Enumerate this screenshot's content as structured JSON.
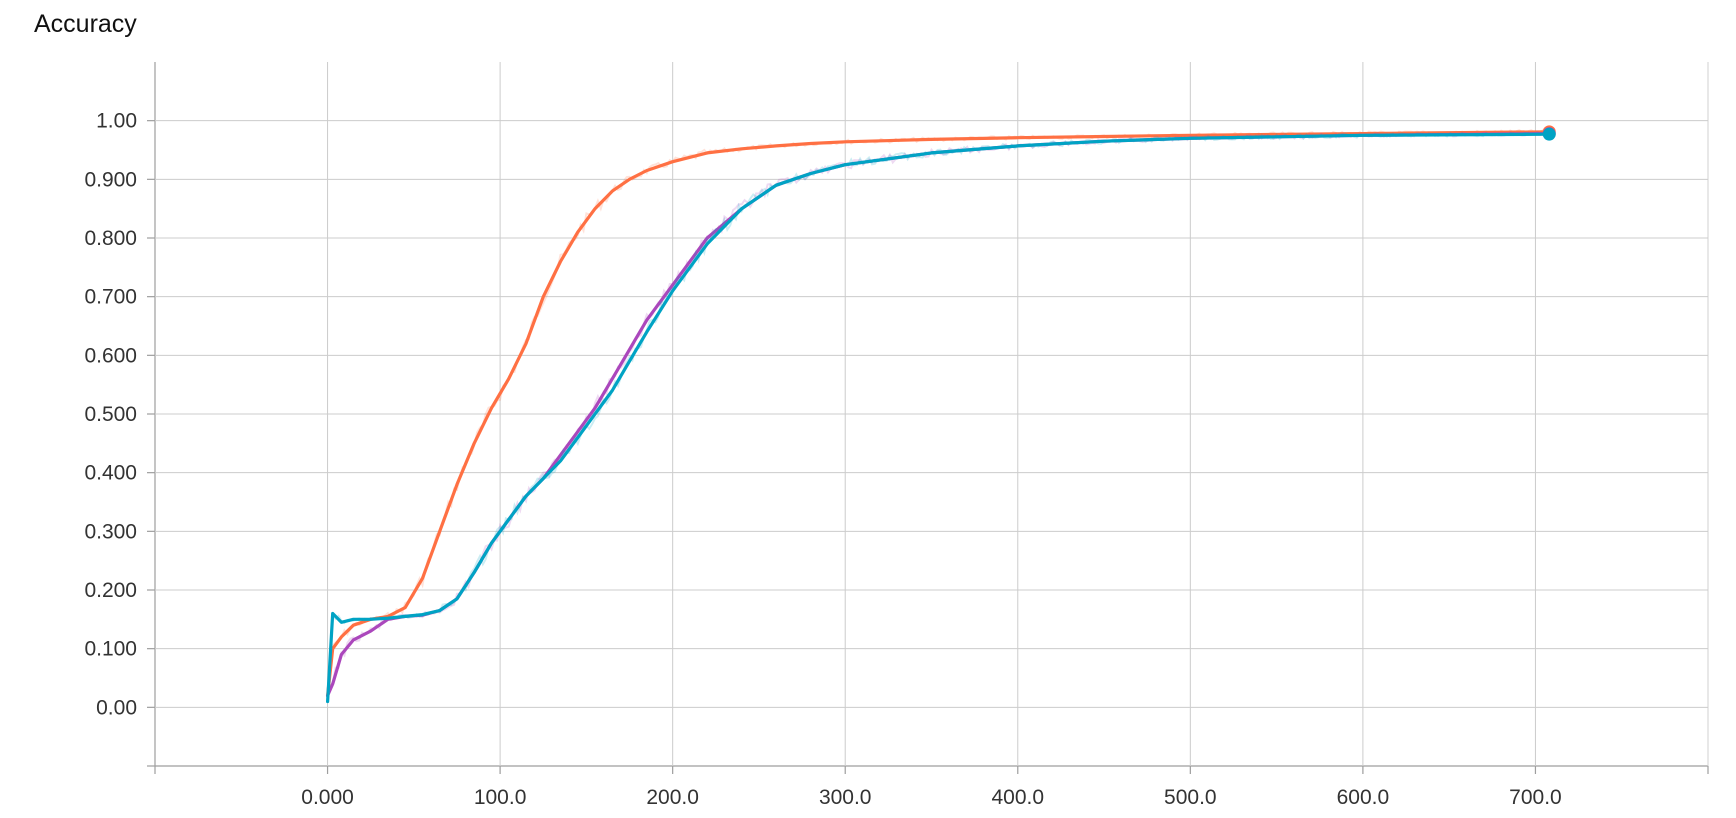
{
  "chart_data": {
    "type": "line",
    "title": "Accuracy",
    "xlabel": "",
    "ylabel": "",
    "xlim": [
      -100,
      800
    ],
    "ylim": [
      -0.1,
      1.1
    ],
    "x_ticks": [
      0,
      100,
      200,
      300,
      400,
      500,
      600,
      700
    ],
    "x_tick_labels": [
      "0.000",
      "100.0",
      "200.0",
      "300.0",
      "400.0",
      "500.0",
      "600.0",
      "700.0"
    ],
    "y_ticks": [
      0,
      0.1,
      0.2,
      0.3,
      0.4,
      0.5,
      0.6,
      0.7,
      0.8,
      0.9,
      1.0
    ],
    "y_tick_labels": [
      "0.00",
      "0.100",
      "0.200",
      "0.300",
      "0.400",
      "0.500",
      "0.600",
      "0.700",
      "0.800",
      "0.900",
      "1.00"
    ],
    "grid": true,
    "series": [
      {
        "color": "#ff7043",
        "x": [
          0,
          3,
          8,
          15,
          25,
          35,
          45,
          55,
          65,
          75,
          85,
          95,
          105,
          115,
          125,
          135,
          145,
          155,
          165,
          175,
          185,
          200,
          220,
          240,
          260,
          280,
          300,
          350,
          400,
          450,
          500,
          600,
          708
        ],
        "y": [
          0.02,
          0.1,
          0.12,
          0.14,
          0.15,
          0.155,
          0.17,
          0.22,
          0.3,
          0.38,
          0.45,
          0.51,
          0.56,
          0.62,
          0.7,
          0.76,
          0.81,
          0.85,
          0.88,
          0.9,
          0.915,
          0.93,
          0.945,
          0.952,
          0.957,
          0.961,
          0.964,
          0.968,
          0.971,
          0.973,
          0.975,
          0.978,
          0.981
        ]
      },
      {
        "color": "#ab47bc",
        "x": [
          0,
          3,
          8,
          15,
          25,
          35,
          45,
          55,
          65,
          75,
          85,
          95,
          105,
          115,
          125,
          135,
          145,
          155,
          165,
          175,
          185,
          200,
          220,
          240,
          260,
          280,
          300,
          350,
          400,
          450,
          500,
          600,
          708
        ],
        "y": [
          0.02,
          0.04,
          0.09,
          0.115,
          0.13,
          0.15,
          0.155,
          0.157,
          0.165,
          0.185,
          0.23,
          0.28,
          0.32,
          0.36,
          0.39,
          0.43,
          0.47,
          0.51,
          0.56,
          0.61,
          0.66,
          0.72,
          0.8,
          0.85,
          0.89,
          0.91,
          0.925,
          0.945,
          0.957,
          0.965,
          0.97,
          0.975,
          0.978
        ]
      },
      {
        "color": "#00a3c4",
        "x": [
          0,
          3,
          8,
          15,
          25,
          35,
          45,
          55,
          65,
          75,
          85,
          95,
          105,
          115,
          125,
          135,
          145,
          155,
          165,
          175,
          185,
          200,
          220,
          240,
          260,
          280,
          300,
          350,
          400,
          450,
          500,
          600,
          708
        ],
        "y": [
          0.01,
          0.16,
          0.145,
          0.15,
          0.15,
          0.152,
          0.155,
          0.158,
          0.165,
          0.185,
          0.23,
          0.28,
          0.32,
          0.36,
          0.39,
          0.42,
          0.46,
          0.5,
          0.54,
          0.59,
          0.64,
          0.71,
          0.79,
          0.85,
          0.89,
          0.91,
          0.925,
          0.945,
          0.957,
          0.965,
          0.97,
          0.975,
          0.977
        ]
      }
    ]
  }
}
